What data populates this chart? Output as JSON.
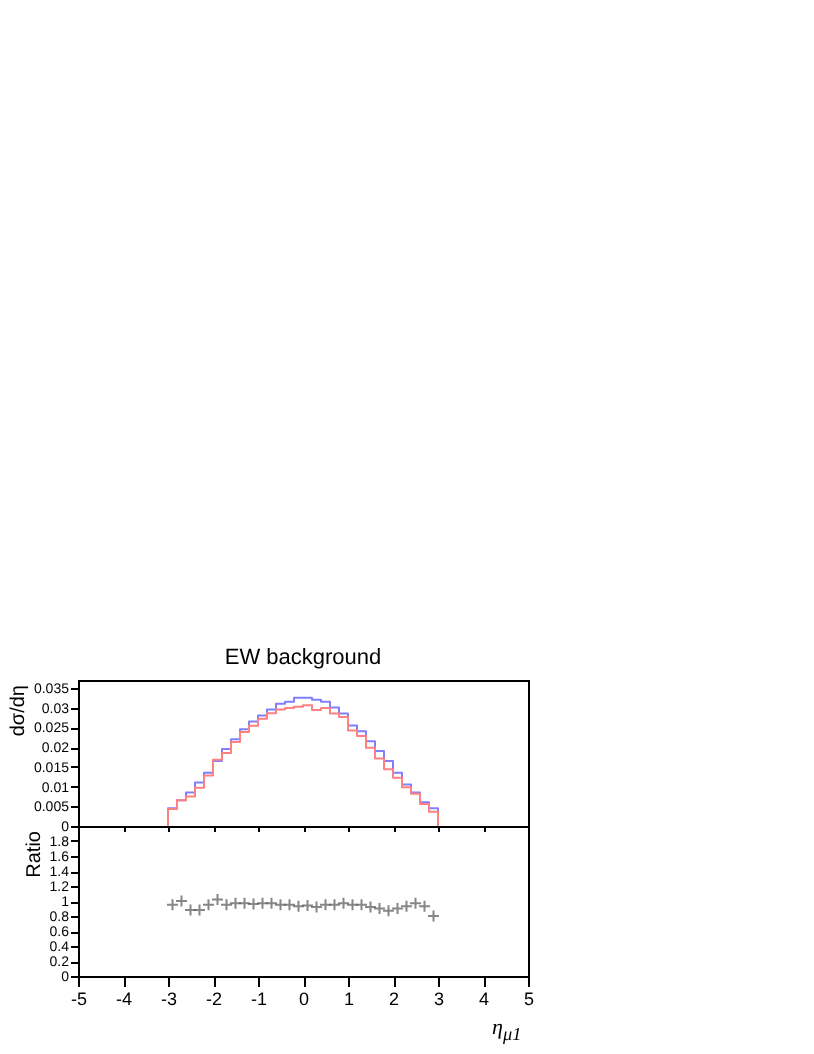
{
  "chart_data": [
    {
      "type": "histogram",
      "title": "EW background",
      "ylabel": "dσ/dη",
      "bins": [
        -3,
        -2.8,
        -2.6,
        -2.4,
        -2.2,
        -2,
        -1.8,
        -1.6,
        -1.4,
        -1.2,
        -1,
        -0.8,
        -0.6,
        -0.4,
        -0.2,
        0,
        0.2,
        0.4,
        0.6,
        0.8,
        1,
        1.2,
        1.4,
        1.6,
        1.8,
        2,
        2.2,
        2.4,
        2.6,
        2.8,
        3
      ],
      "xlim": [
        -5,
        5
      ],
      "xticks": [
        -5,
        -4,
        -3,
        -2,
        -1,
        0,
        1,
        2,
        3,
        4,
        5
      ],
      "ylim": [
        0,
        0.037
      ],
      "yticks": [
        0,
        0.005,
        0.01,
        0.015,
        0.02,
        0.025,
        0.03,
        0.035
      ],
      "tick_labels": "y",
      "grid": false,
      "series": [
        {
          "color": "#8080ff",
          "values": [
            0.0045,
            0.0065,
            0.0085,
            0.011,
            0.0135,
            0.0165,
            0.0195,
            0.022,
            0.0245,
            0.0265,
            0.028,
            0.0295,
            0.031,
            0.0315,
            0.0325,
            0.0325,
            0.032,
            0.0315,
            0.03,
            0.0285,
            0.0255,
            0.024,
            0.0215,
            0.019,
            0.0165,
            0.0135,
            0.0105,
            0.0085,
            0.006,
            0.0045
          ]
        },
        {
          "color": "#ff8080",
          "values": [
            0.0043,
            0.0065,
            0.0075,
            0.0097,
            0.0128,
            0.0168,
            0.0185,
            0.0213,
            0.0238,
            0.0254,
            0.0272,
            0.0286,
            0.0295,
            0.0299,
            0.0302,
            0.0306,
            0.0294,
            0.0299,
            0.0285,
            0.0276,
            0.0242,
            0.0228,
            0.0198,
            0.0171,
            0.0144,
            0.0122,
            0.0098,
            0.0082,
            0.0056,
            0.0036
          ]
        }
      ]
    },
    {
      "type": "scatter",
      "ylabel": "Ratio",
      "xlabel": "η$_{μ1}$",
      "marker": "cross",
      "xlim": [
        -5,
        5
      ],
      "xticks": [
        -5,
        -4,
        -3,
        -2,
        -1,
        0,
        1,
        2,
        3,
        4,
        5
      ],
      "ylim": [
        0,
        2
      ],
      "yticks": [
        0,
        0.2,
        0.4,
        0.6,
        0.8,
        1,
        1.2,
        1.4,
        1.6,
        1.8
      ],
      "grid": false,
      "series": [
        {
          "color": "#555555",
          "x": [
            -2.9,
            -2.7,
            -2.5,
            -2.3,
            -2.1,
            -1.9,
            -1.7,
            -1.5,
            -1.3,
            -1.1,
            -0.9,
            -0.7,
            -0.5,
            -0.3,
            -0.1,
            0.1,
            0.3,
            0.5,
            0.7,
            0.9,
            1.1,
            1.3,
            1.5,
            1.7,
            1.9,
            2.1,
            2.3,
            2.5,
            2.7,
            2.9
          ],
          "values": [
            0.95,
            1.0,
            0.88,
            0.88,
            0.95,
            1.02,
            0.95,
            0.97,
            0.97,
            0.96,
            0.97,
            0.97,
            0.95,
            0.95,
            0.93,
            0.94,
            0.92,
            0.95,
            0.95,
            0.97,
            0.95,
            0.95,
            0.92,
            0.9,
            0.87,
            0.9,
            0.93,
            0.97,
            0.93,
            0.8
          ]
        }
      ]
    }
  ]
}
